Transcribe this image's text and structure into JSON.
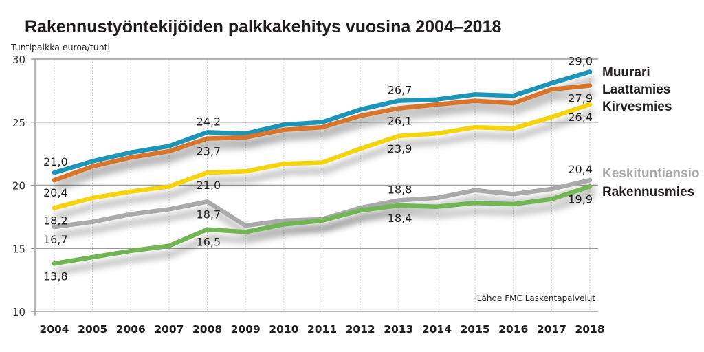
{
  "chart_data": {
    "type": "line",
    "title": "Rakennustyöntekijöiden palkkakehitys vuosina 2004–2018",
    "ylabel": "Tuntipalkka euroa/tunti",
    "xlabel": "",
    "source": "Lähde FMC Laskentapalvelut",
    "ylim": [
      10,
      30
    ],
    "yticks": [
      "10",
      "15",
      "20",
      "25",
      "30"
    ],
    "ytick_values": [
      10,
      15,
      20,
      25,
      30
    ],
    "grid": "horizontal solid at y-ticks, vertical dotted at each year",
    "x": [
      "2004",
      "2005",
      "2006",
      "2007",
      "2008",
      "2009",
      "2010",
      "2011",
      "2012",
      "2013",
      "2014",
      "2015",
      "2016",
      "2017",
      "2018"
    ],
    "legend_placement": "right, at line ends",
    "series": [
      {
        "name": "Muurari",
        "color": "#1a95b8",
        "label_color": "#231f20",
        "values": [
          21.0,
          21.9,
          22.6,
          23.1,
          24.2,
          24.1,
          24.8,
          25.0,
          26.0,
          26.7,
          26.8,
          27.2,
          27.1,
          28.1,
          29.0
        ],
        "data_labels": [
          {
            "year": "2004",
            "text": "21,0",
            "pos": "above"
          },
          {
            "year": "2008",
            "text": "24,2",
            "pos": "above"
          },
          {
            "year": "2013",
            "text": "26,7",
            "pos": "above"
          },
          {
            "year": "2018",
            "text": "29,0",
            "pos": "above"
          }
        ]
      },
      {
        "name": "Laattamies",
        "color": "#d9742b",
        "label_color": "#231f20",
        "values": [
          20.4,
          21.5,
          22.2,
          22.7,
          23.7,
          23.8,
          24.4,
          24.6,
          25.5,
          26.1,
          26.4,
          26.7,
          26.5,
          27.6,
          27.9
        ],
        "data_labels": [
          {
            "year": "2004",
            "text": "20,4",
            "pos": "below"
          },
          {
            "year": "2008",
            "text": "23,7",
            "pos": "below"
          },
          {
            "year": "2013",
            "text": "26,1",
            "pos": "below"
          },
          {
            "year": "2018",
            "text": "27,9",
            "pos": "below"
          }
        ]
      },
      {
        "name": "Kirvesmies",
        "color": "#f5d40a",
        "label_color": "#231f20",
        "values": [
          18.2,
          19.0,
          19.5,
          19.9,
          21.0,
          21.1,
          21.7,
          21.8,
          22.9,
          23.9,
          24.1,
          24.6,
          24.5,
          25.4,
          26.4
        ],
        "data_labels": [
          {
            "year": "2004",
            "text": "18,2",
            "pos": "below"
          },
          {
            "year": "2008",
            "text": "21,0",
            "pos": "below"
          },
          {
            "year": "2013",
            "text": "23,9",
            "pos": "below"
          },
          {
            "year": "2018",
            "text": "26,4",
            "pos": "below"
          }
        ]
      },
      {
        "name": "Keskituntiansio",
        "color": "#aaaaaa",
        "label_color": "#a9a9a9",
        "values": [
          16.7,
          17.1,
          17.7,
          18.1,
          18.7,
          16.8,
          17.2,
          17.3,
          18.2,
          18.8,
          19.0,
          19.6,
          19.3,
          19.7,
          20.4
        ],
        "data_labels": [
          {
            "year": "2004",
            "text": "16,7",
            "pos": "below"
          },
          {
            "year": "2008",
            "text": "18,7",
            "pos": "below"
          },
          {
            "year": "2013",
            "text": "18,8",
            "pos": "above"
          },
          {
            "year": "2018",
            "text": "20,4",
            "pos": "above"
          }
        ]
      },
      {
        "name": "Rakennusmies",
        "color": "#72b552",
        "label_color": "#231f20",
        "values": [
          13.8,
          14.3,
          14.8,
          15.2,
          16.5,
          16.3,
          16.9,
          17.2,
          18.0,
          18.4,
          18.3,
          18.6,
          18.5,
          18.9,
          19.9
        ],
        "data_labels": [
          {
            "year": "2004",
            "text": "13,8",
            "pos": "below"
          },
          {
            "year": "2008",
            "text": "16,5",
            "pos": "below"
          },
          {
            "year": "2013",
            "text": "18,4",
            "pos": "below"
          },
          {
            "year": "2018",
            "text": "19,9",
            "pos": "below"
          }
        ]
      }
    ]
  }
}
